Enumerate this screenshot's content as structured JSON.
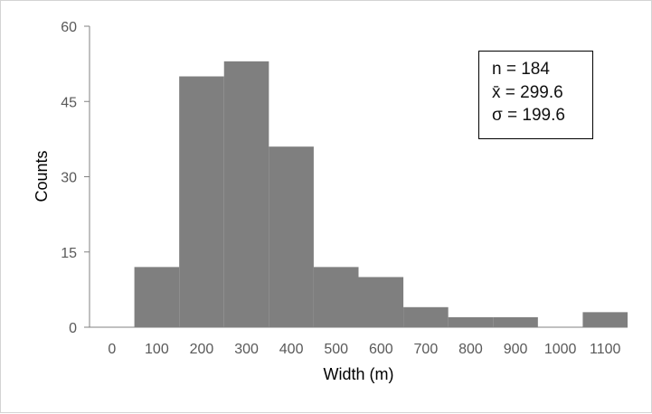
{
  "chart_data": {
    "type": "bar",
    "histogram": true,
    "xlabel": "Width (m)",
    "ylabel": "Counts",
    "xlim": [
      -50,
      1150
    ],
    "ylim": [
      0,
      60
    ],
    "x_ticks": [
      0,
      100,
      200,
      300,
      400,
      500,
      600,
      700,
      800,
      900,
      1000,
      1100
    ],
    "y_ticks": [
      0,
      15,
      30,
      45,
      60
    ],
    "bin_width": 100,
    "bin_centers": [
      0,
      100,
      200,
      300,
      400,
      500,
      600,
      700,
      800,
      900,
      1000,
      1100
    ],
    "values": [
      0,
      12,
      50,
      53,
      36,
      12,
      10,
      4,
      2,
      2,
      0,
      3
    ],
    "bar_color": "#7f7f7f",
    "grid": false,
    "annotation": {
      "lines": [
        "n = 184",
        "x̄  = 299.6",
        "σ = 199.6"
      ],
      "placement": "top-right"
    }
  }
}
